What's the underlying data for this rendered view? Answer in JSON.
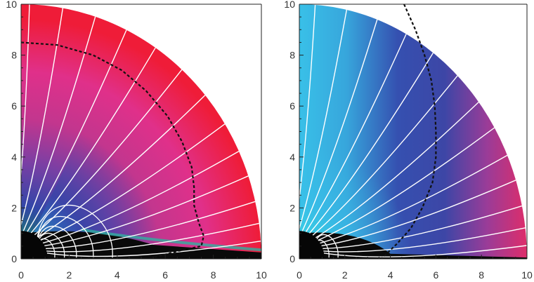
{
  "chart_data": [
    {
      "type": "heatmap",
      "panel": "left",
      "xlim": [
        0,
        10
      ],
      "ylim": [
        0,
        10
      ],
      "xticks": [
        "0",
        "2",
        "4",
        "6",
        "8",
        "10"
      ],
      "yticks": [
        "0",
        "2",
        "4",
        "6",
        "8",
        "10"
      ],
      "title": "",
      "xlabel": "",
      "ylabel": "",
      "colormap": [
        "#0a0a0a",
        "#1f8a85",
        "#39c0e8",
        "#3550b0",
        "#5b3f9e",
        "#c2368e",
        "#ea2a62",
        "#ef1c38"
      ],
      "field_colors": {
        "outer": "#ef1c38",
        "mid": "#d93a8e",
        "polar_low": "#2f45a8",
        "disk": "#0a0a0a"
      },
      "field_line_angles_deg": [
        88,
        80,
        72,
        64,
        56,
        48,
        40,
        32,
        25,
        19,
        13,
        8,
        4
      ],
      "closed_loop_radii": [
        1.4,
        1.8,
        2.3,
        3.0,
        3.8
      ],
      "dashed_contour": {
        "x": [
          0,
          1.5,
          3.0,
          4.2,
          5.2,
          6.1,
          6.7,
          7.1,
          7.2,
          7.2,
          7.4,
          7.6,
          7.5,
          6.5,
          5.3
        ],
        "y": [
          8.5,
          8.4,
          8.0,
          7.4,
          6.6,
          5.6,
          4.6,
          3.6,
          2.8,
          2.1,
          1.4,
          0.9,
          0.5,
          0.3,
          0.0
        ]
      }
    },
    {
      "type": "heatmap",
      "panel": "right",
      "xlim": [
        0,
        10
      ],
      "ylim": [
        0,
        10
      ],
      "xticks": [
        "0",
        "2",
        "4",
        "6",
        "8",
        "10"
      ],
      "yticks": [
        "0",
        "2",
        "4",
        "6",
        "8",
        "10"
      ],
      "title": "",
      "xlabel": "",
      "ylabel": "",
      "colormap": [
        "#0a0a0a",
        "#1f8a85",
        "#39c0e8",
        "#3550b0",
        "#5b3f9e",
        "#c2368e",
        "#ea2a62",
        "#ef1c38"
      ],
      "field_colors": {
        "polar": "#39c0e8",
        "mid": "#3550b0",
        "outer": "#ea2a62",
        "disk": "#0a0a0a"
      },
      "field_line_angles_deg": [
        86,
        78,
        70,
        62,
        54,
        46,
        38,
        31,
        24,
        18,
        12,
        7,
        3
      ],
      "closed_loop_radii": [
        1.3,
        1.7
      ],
      "dashed_contour": {
        "x": [
          4.0,
          4.6,
          5.1,
          5.5,
          5.8,
          5.95,
          6.0,
          6.0,
          5.85,
          5.4,
          4.9,
          4.3,
          3.6
        ],
        "y": [
          10.8,
          10.0,
          9.0,
          8.0,
          7.0,
          6.0,
          5.0,
          4.0,
          3.0,
          2.0,
          1.2,
          0.6,
          0.0
        ]
      }
    }
  ]
}
